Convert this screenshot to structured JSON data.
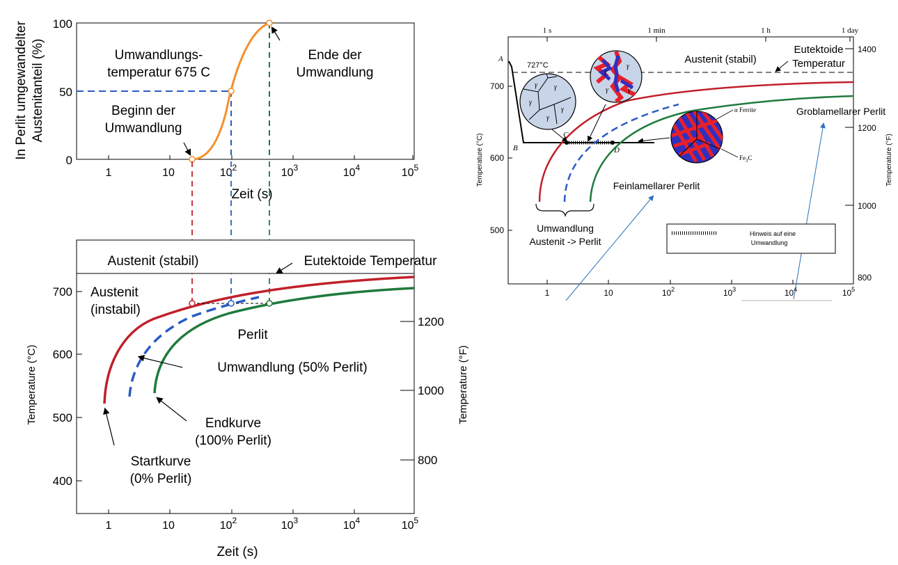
{
  "colors": {
    "orange": "#f4902a",
    "red": "#c0202a",
    "blue": "#2060b0",
    "green": "#1f7a3c",
    "dashed_blue": "#2a5cc4",
    "grain_fill": "#c8d4e8",
    "pearlite_red": "#e8202a",
    "pearlite_blue": "#3030c0"
  },
  "top_chart": {
    "ylabel_line1": "In Perlit umgewandelter",
    "ylabel_line2": "Austenitanteil (%)",
    "xlabel": "Zeit (s)",
    "y_ticks": [
      "0",
      "50",
      "100"
    ],
    "x_ticks": [
      "1",
      "10",
      "10",
      "10",
      "10",
      "10"
    ],
    "x_exponents": [
      "",
      "",
      "2",
      "3",
      "4",
      "5"
    ],
    "note_temp_line1": "Umwandlungs-",
    "note_temp_line2": "temperatur 675 C",
    "note_start_line1": "Beginn der",
    "note_start_line2": "Umwandlung",
    "note_end_line1": "Ende der",
    "note_end_line2": "Umwandlung"
  },
  "bottom_chart": {
    "ylabel_left": "Temperature (°C)",
    "ylabel_right": "Temperature (°F)",
    "xlabel": "Zeit (s)",
    "y_ticks_c": [
      "400",
      "500",
      "600",
      "700"
    ],
    "y_ticks_f": [
      "800",
      "1000",
      "1200"
    ],
    "x_ticks": [
      "1",
      "10",
      "10",
      "10",
      "10",
      "10"
    ],
    "x_exponents": [
      "",
      "",
      "2",
      "3",
      "4",
      "5"
    ],
    "label_austenite_stable": "Austenit (stabil)",
    "label_eutectoid": "Eutektoide Temperatur",
    "label_austenite_unstable_1": "Austenit",
    "label_austenite_unstable_2": "(instabil)",
    "label_pearlite": "Perlit",
    "label_50": "Umwandlung (50% Perlit)",
    "label_end_1": "Endkurve",
    "label_end_2": "(100% Perlit)",
    "label_start_1": "Startkurve",
    "label_start_2": "(0% Perlit)"
  },
  "right_chart": {
    "top_ticks": [
      "1 s",
      "1 min",
      "1 h",
      "1 day"
    ],
    "y_ticks_c": [
      "500",
      "600",
      "700"
    ],
    "y_ticks_f": [
      "800",
      "1000",
      "1200",
      "1400"
    ],
    "x_ticks": [
      "1",
      "10",
      "10",
      "10",
      "10",
      "10"
    ],
    "x_exponents": [
      "",
      "",
      "2",
      "3",
      "4",
      "5"
    ],
    "ylabel_left": "Temperature (°C)",
    "ylabel_right": "Temperature (°F)",
    "label_727": "727°C",
    "label_austenite_stable": "Austenit (stabil)",
    "label_eutectoid_1": "Eutektoide",
    "label_eutectoid_2": "Temperatur",
    "label_coarse": "Groblamellarer Perlit",
    "label_fine": "Feinlamellarer Perlit",
    "label_transform_1": "Umwandlung",
    "label_transform_2": "Austenit -> Perlit",
    "legend_text_1": "Hinweis auf eine",
    "legend_text_2": "Umwandlung",
    "label_ferrite": "α Ferrite",
    "label_fe3c": "Fe",
    "label_fe3c_sub": "3",
    "label_fe3c_end": "C",
    "point_a": "A",
    "point_b": "B",
    "point_c": "C",
    "point_d": "D",
    "gamma": "γ"
  }
}
